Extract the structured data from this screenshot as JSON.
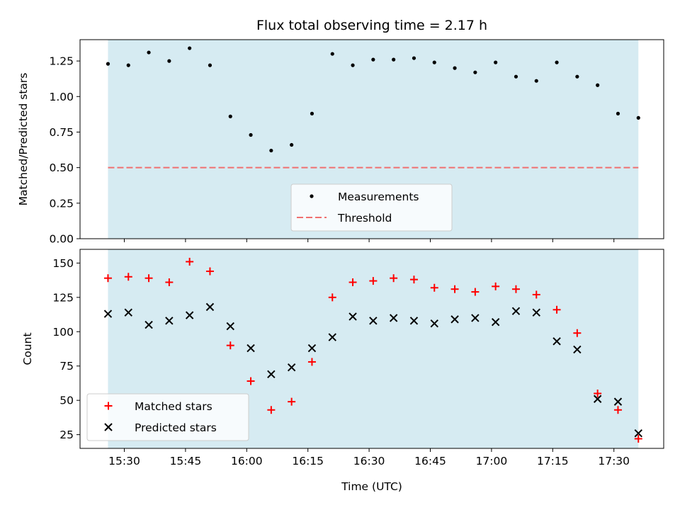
{
  "chart_data": [
    {
      "type": "scatter",
      "title": "Flux total observing time = 2.17 h",
      "ylabel": "Matched/Predicted stars",
      "xlabel": "",
      "ylim": [
        0,
        1.4
      ],
      "yticks": [
        "0.00",
        "0.25",
        "0.50",
        "0.75",
        "1.00",
        "1.25"
      ],
      "shaded_band": {
        "color": "#add8e6",
        "alpha": 0.5
      },
      "threshold": {
        "name": "Threshold",
        "value": 0.5,
        "color": "#f07070",
        "style": "dashed"
      },
      "series": [
        {
          "name": "Measurements",
          "marker": "dot",
          "color": "#000000",
          "x": [
            "15:26",
            "15:31",
            "15:36",
            "15:41",
            "15:46",
            "15:51",
            "15:56",
            "16:01",
            "16:06",
            "16:11",
            "16:16",
            "16:21",
            "16:26",
            "16:31",
            "16:36",
            "16:41",
            "16:46",
            "16:51",
            "16:56",
            "17:01",
            "17:06",
            "17:11",
            "17:16",
            "17:21",
            "17:26",
            "17:31",
            "17:36"
          ],
          "y": [
            1.23,
            1.22,
            1.31,
            1.25,
            1.34,
            1.22,
            0.86,
            0.73,
            0.62,
            0.66,
            0.88,
            1.3,
            1.22,
            1.26,
            1.26,
            1.27,
            1.24,
            1.2,
            1.17,
            1.24,
            1.14,
            1.11,
            1.24,
            1.14,
            1.08,
            0.88,
            0.85
          ]
        }
      ],
      "legend": {
        "placement": "bottom-center",
        "entries": [
          "Measurements",
          "Threshold"
        ]
      }
    },
    {
      "type": "scatter",
      "title": "",
      "ylabel": "Count",
      "xlabel": "Time (UTC)",
      "ylim": [
        15,
        160
      ],
      "yticks": [
        "25",
        "50",
        "75",
        "100",
        "125",
        "150"
      ],
      "xticks": [
        "15:30",
        "15:45",
        "16:00",
        "16:15",
        "16:30",
        "16:45",
        "17:00",
        "17:15",
        "17:30"
      ],
      "shaded_band": {
        "color": "#add8e6",
        "alpha": 0.5
      },
      "series": [
        {
          "name": "Matched stars",
          "marker": "plus",
          "color": "#ff0000",
          "x": [
            "15:26",
            "15:31",
            "15:36",
            "15:41",
            "15:46",
            "15:51",
            "15:56",
            "16:01",
            "16:06",
            "16:11",
            "16:16",
            "16:21",
            "16:26",
            "16:31",
            "16:36",
            "16:41",
            "16:46",
            "16:51",
            "16:56",
            "17:01",
            "17:06",
            "17:11",
            "17:16",
            "17:21",
            "17:26",
            "17:31",
            "17:36"
          ],
          "y": [
            139,
            140,
            139,
            136,
            151,
            144,
            90,
            64,
            43,
            49,
            78,
            125,
            136,
            137,
            139,
            138,
            132,
            131,
            129,
            133,
            131,
            127,
            116,
            99,
            55,
            43,
            22
          ]
        },
        {
          "name": "Predicted stars",
          "marker": "x",
          "color": "#000000",
          "x": [
            "15:26",
            "15:31",
            "15:36",
            "15:41",
            "15:46",
            "15:51",
            "15:56",
            "16:01",
            "16:06",
            "16:11",
            "16:16",
            "16:21",
            "16:26",
            "16:31",
            "16:36",
            "16:41",
            "16:46",
            "16:51",
            "16:56",
            "17:01",
            "17:06",
            "17:11",
            "17:16",
            "17:21",
            "17:26",
            "17:31",
            "17:36"
          ],
          "y": [
            113,
            114,
            105,
            108,
            112,
            118,
            104,
            88,
            69,
            74,
            88,
            96,
            111,
            108,
            110,
            108,
            106,
            109,
            110,
            107,
            115,
            114,
            93,
            87,
            51,
            49,
            26
          ]
        }
      ],
      "legend": {
        "placement": "bottom-left",
        "entries": [
          "Matched stars",
          "Predicted stars"
        ]
      }
    }
  ]
}
